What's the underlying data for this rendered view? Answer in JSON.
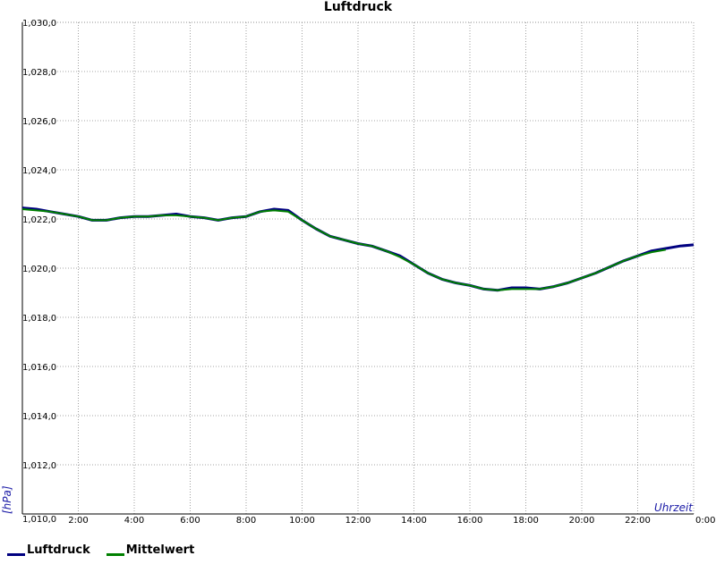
{
  "chart_data": {
    "type": "line",
    "title": "Luftdruck",
    "xlabel": "Uhrzeit",
    "ylabel": "[hPa]",
    "xlim": [
      "0:00",
      "24:00"
    ],
    "ylim": [
      1010.0,
      1030.0
    ],
    "x_ticks": [
      "2:00",
      "4:00",
      "6:00",
      "8:00",
      "10:00",
      "12:00",
      "14:00",
      "16:00",
      "18:00",
      "20:00",
      "22:00",
      "0:00"
    ],
    "y_ticks": [
      "1,010,0",
      "1,012,0",
      "1,014,0",
      "1,016,0",
      "1,018,0",
      "1,020,0",
      "1,022,0",
      "1,024,0",
      "1,026,0",
      "1,028,0",
      "1,030,0"
    ],
    "grid": true,
    "legend_position": "bottom-left",
    "series": [
      {
        "name": "Luftdruck",
        "color": "#000080",
        "x": [
          "0:00",
          "0:30",
          "1:00",
          "1:30",
          "2:00",
          "2:30",
          "3:00",
          "3:30",
          "4:00",
          "4:30",
          "5:00",
          "5:30",
          "6:00",
          "6:30",
          "7:00",
          "7:30",
          "8:00",
          "8:30",
          "9:00",
          "9:30",
          "10:00",
          "10:30",
          "11:00",
          "11:30",
          "12:00",
          "12:30",
          "13:00",
          "13:30",
          "14:00",
          "14:30",
          "15:00",
          "15:30",
          "16:00",
          "16:30",
          "17:00",
          "17:30",
          "18:00",
          "18:30",
          "19:00",
          "19:30",
          "20:00",
          "20:30",
          "21:00",
          "21:30",
          "22:00",
          "22:30",
          "23:00",
          "23:30",
          "24:00"
        ],
        "values": [
          1022.45,
          1022.4,
          1022.3,
          1022.2,
          1022.1,
          1021.95,
          1021.95,
          1022.05,
          1022.1,
          1022.1,
          1022.15,
          1022.2,
          1022.1,
          1022.05,
          1021.95,
          1022.05,
          1022.1,
          1022.3,
          1022.4,
          1022.35,
          1021.95,
          1021.6,
          1021.3,
          1021.15,
          1021.0,
          1020.9,
          1020.7,
          1020.5,
          1020.15,
          1019.8,
          1019.55,
          1019.4,
          1019.3,
          1019.15,
          1019.1,
          1019.2,
          1019.2,
          1019.15,
          1019.25,
          1019.4,
          1019.6,
          1019.8,
          1020.05,
          1020.3,
          1020.5,
          1020.7,
          1020.8,
          1020.9,
          1020.95
        ]
      },
      {
        "name": "Mittelwert",
        "color": "#008000",
        "x": [
          "0:00",
          "0:30",
          "1:00",
          "1:30",
          "2:00",
          "2:30",
          "3:00",
          "3:30",
          "4:00",
          "4:30",
          "5:00",
          "5:30",
          "6:00",
          "6:30",
          "7:00",
          "7:30",
          "8:00",
          "8:30",
          "9:00",
          "9:30",
          "10:00",
          "10:30",
          "11:00",
          "11:30",
          "12:00",
          "12:30",
          "13:00",
          "13:30",
          "14:00",
          "14:30",
          "15:00",
          "15:30",
          "16:00",
          "16:30",
          "17:00",
          "17:30",
          "18:00",
          "18:30",
          "19:00",
          "19:30",
          "20:00",
          "20:30",
          "21:00",
          "21:30",
          "22:00",
          "22:30",
          "23:00"
        ],
        "values": [
          1022.4,
          1022.35,
          1022.3,
          1022.2,
          1022.1,
          1021.95,
          1021.95,
          1022.05,
          1022.1,
          1022.1,
          1022.15,
          1022.15,
          1022.1,
          1022.05,
          1021.95,
          1022.05,
          1022.1,
          1022.3,
          1022.35,
          1022.3,
          1021.95,
          1021.6,
          1021.3,
          1021.15,
          1021.0,
          1020.9,
          1020.7,
          1020.45,
          1020.15,
          1019.8,
          1019.55,
          1019.4,
          1019.3,
          1019.15,
          1019.1,
          1019.15,
          1019.15,
          1019.15,
          1019.25,
          1019.4,
          1019.6,
          1019.8,
          1020.05,
          1020.3,
          1020.5,
          1020.65,
          1020.75
        ]
      }
    ]
  }
}
